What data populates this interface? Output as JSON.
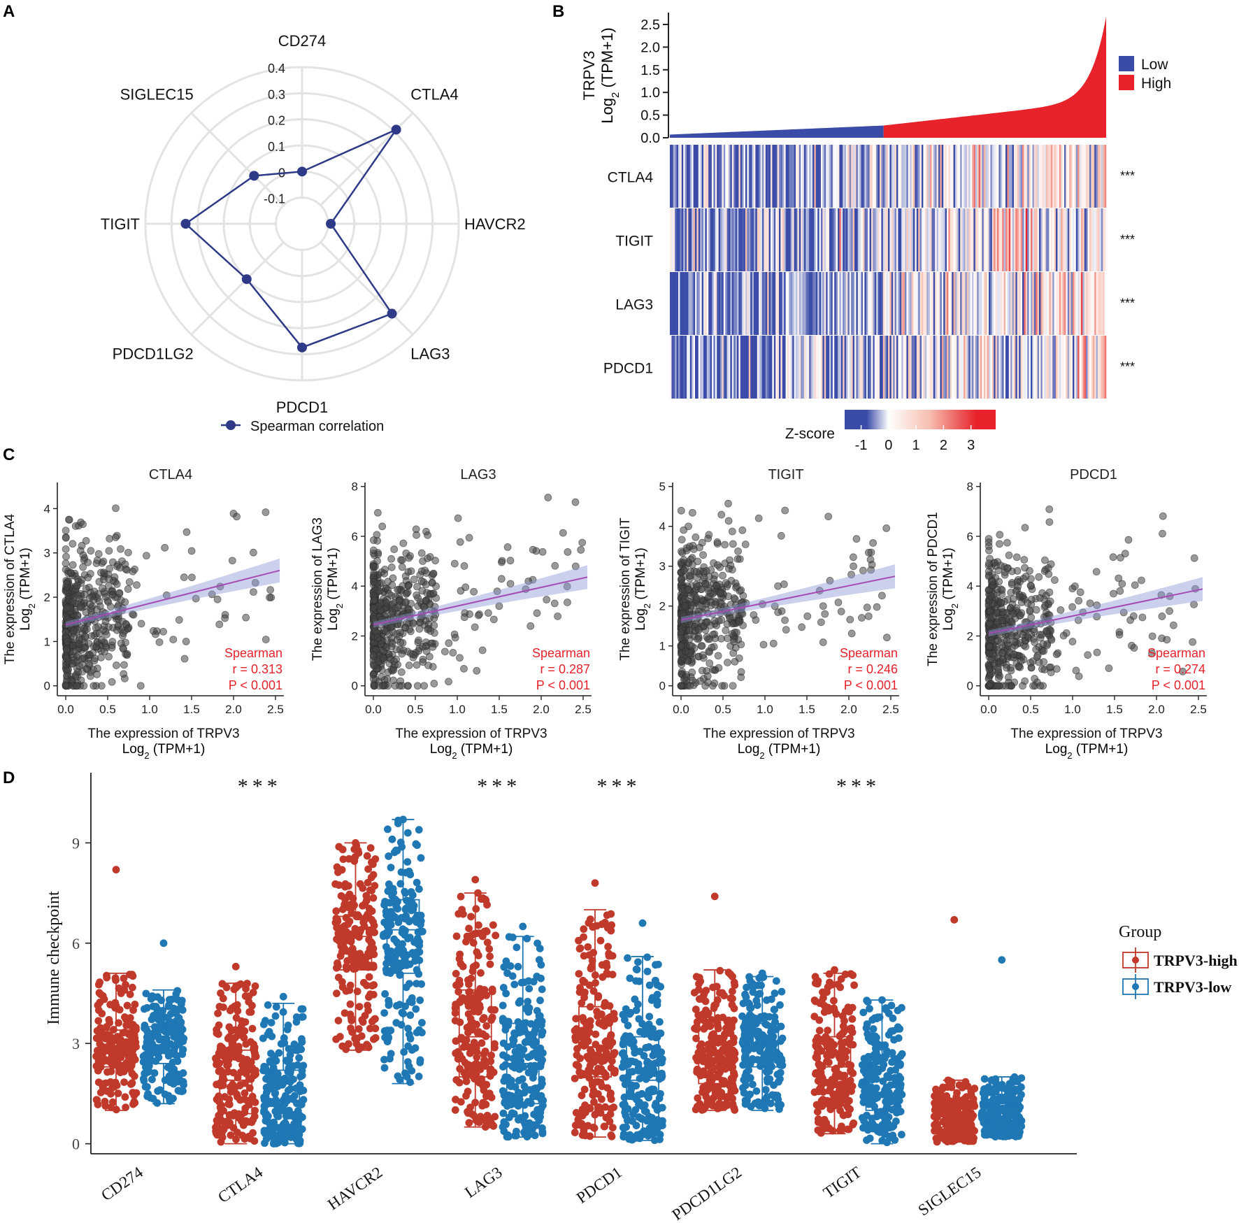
{
  "panel_labels": [
    "A",
    "B",
    "C",
    "D"
  ],
  "chart_data": [
    {
      "panel": "A",
      "type": "radar",
      "title": "",
      "axes": [
        "CD274",
        "CTLA4",
        "HAVCR2",
        "LAG3",
        "PDCD1",
        "PDCD1LG2",
        "TIGIT",
        "SIGLEC15"
      ],
      "values": [
        0.0,
        0.31,
        -0.09,
        0.287,
        0.274,
        0.1,
        0.246,
        0.06
      ],
      "rlim": [
        -0.2,
        0.4
      ],
      "ticks": [
        "0.4",
        "0.3",
        "0.2",
        "0.1",
        "0",
        "-0.1"
      ],
      "tick_values": [
        0.4,
        0.3,
        0.2,
        0.1,
        0,
        -0.1
      ],
      "legend": "Spearman correlation",
      "series_color": "#2e3a87"
    },
    {
      "panel": "B",
      "type": "heatmap",
      "bar_ylabel_line1": "TRPV3",
      "bar_ylabel_line2": "Log",
      "bar_ylabel_sub": "2",
      "bar_ylabel_tail": " (TPM+1)",
      "bar_yticks": [
        "2.5",
        "2.0",
        "1.5",
        "1.0",
        "0.5",
        "0.0"
      ],
      "bar_ytick_values": [
        2.5,
        2.0,
        1.5,
        1.0,
        0.5,
        0.0
      ],
      "bar_ylim": [
        0,
        2.7
      ],
      "low_fraction": 0.49,
      "legend": [
        {
          "label": "Low",
          "color": "#3a4ba8"
        },
        {
          "label": "High",
          "color": "#e8222b"
        }
      ],
      "rows": [
        "CTLA4",
        "TIGIT",
        "LAG3",
        "PDCD1"
      ],
      "row_significance": [
        "***",
        "***",
        "***",
        "***"
      ],
      "zscore_label": "Z-score",
      "zscore_ticks": [
        "-1",
        "0",
        "1",
        "2",
        "3"
      ],
      "zscore_tick_values": [
        -1,
        0,
        1,
        2,
        3
      ],
      "zscore_range": [
        -1.6,
        3.9
      ]
    },
    {
      "panel": "C",
      "type": "scatter",
      "subplots": [
        {
          "title": "CTLA4",
          "ylab1": "The expression of CTLA4",
          "ylim": [
            0,
            4.5
          ],
          "yticks": [
            "0",
            "1",
            "2",
            "3",
            "4"
          ],
          "ytick_values": [
            0,
            1,
            2,
            3,
            4
          ],
          "fit": [
            1.38,
            0.48
          ],
          "stat_title": "Spearman",
          "r": "r = 0.313",
          "p": "P < 0.001"
        },
        {
          "title": "LAG3",
          "ylab1": "The expression of LAG3",
          "ylim": [
            0,
            8
          ],
          "yticks": [
            "0",
            "2",
            "4",
            "6",
            "8"
          ],
          "ytick_values": [
            0,
            2,
            4,
            6,
            8
          ],
          "fit": [
            2.45,
            0.75
          ],
          "stat_title": "Spearman",
          "r": "r = 0.287",
          "p": "P < 0.001"
        },
        {
          "title": "TIGIT",
          "ylab1": "The expression of TIGIT",
          "ylim": [
            0,
            5
          ],
          "yticks": [
            "0",
            "1",
            "2",
            "3",
            "4",
            "5"
          ],
          "ytick_values": [
            0,
            1,
            2,
            3,
            4,
            5
          ],
          "fit": [
            1.65,
            0.43
          ],
          "stat_title": "Spearman",
          "r": "r = 0.246",
          "p": "P < 0.001"
        },
        {
          "title": "PDCD1",
          "ylab1": "The expression of PDCD1",
          "ylim": [
            0,
            8
          ],
          "yticks": [
            "0",
            "2",
            "4",
            "6",
            "8"
          ],
          "ytick_values": [
            0,
            2,
            4,
            6,
            8
          ],
          "fit": [
            2.1,
            0.7
          ],
          "stat_title": "Spearman",
          "r": "r = 0.274",
          "p": "P < 0.001"
        }
      ],
      "ylab2_text": "Log",
      "ylab2_sub": "2",
      "ylab2_tail": " (TPM+1)",
      "xlabel1": "The expression of TRPV3",
      "xlabel2_text": "Log",
      "xlabel2_sub": "2",
      "xlabel2_tail": " (TPM+1)",
      "xticks": [
        "0.0",
        "0.5",
        "1.0",
        "1.5",
        "2.0",
        "2.5"
      ],
      "xtick_values": [
        0.0,
        0.5,
        1.0,
        1.5,
        2.0,
        2.5
      ],
      "xlim": [
        -0.1,
        2.6
      ]
    },
    {
      "panel": "D",
      "type": "box",
      "ylabel": "Immune checkpoint",
      "yticks": [
        "0",
        "3",
        "6",
        "9"
      ],
      "ytick_values": [
        0,
        3,
        6,
        9
      ],
      "ylim": [
        -0.3,
        11.1
      ],
      "categories": [
        "CD274",
        "CTLA4",
        "HAVCR2",
        "LAG3",
        "PDCD1",
        "PDCD1LG2",
        "TIGIT",
        "SIGLEC15"
      ],
      "significance": [
        "",
        "***",
        "",
        "***",
        "***",
        "",
        "***",
        ""
      ],
      "legend_title": "Group",
      "series": [
        {
          "name": "TRPV3-high",
          "color": "#c0392b",
          "q1": [
            2.3,
            0.9,
            5.2,
            2.0,
            2.0,
            1.8,
            1.5,
            0.5
          ],
          "median": [
            2.9,
            1.9,
            6.2,
            3.2,
            2.9,
            2.8,
            2.3,
            0.9
          ],
          "q3": [
            3.4,
            2.8,
            6.8,
            4.6,
            4.1,
            3.7,
            3.2,
            1.2
          ],
          "whisker_low": [
            1.0,
            0.0,
            2.8,
            0.5,
            0.2,
            1.0,
            0.3,
            0.05
          ],
          "whisker_high": [
            5.1,
            4.8,
            9.0,
            7.5,
            7.0,
            5.2,
            5.1,
            1.9
          ],
          "max_point": [
            8.2,
            5.3,
            9.0,
            7.9,
            7.8,
            7.4,
            5.2,
            6.7
          ]
        },
        {
          "name": "TRPV3-low",
          "color": "#1f77b4",
          "q1": [
            2.4,
            0.4,
            5.1,
            1.2,
            0.8,
            2.3,
            1.0,
            0.4
          ],
          "median": [
            2.9,
            1.3,
            6.4,
            2.4,
            1.9,
            3.0,
            1.9,
            0.8
          ],
          "q3": [
            3.5,
            2.2,
            7.3,
            3.6,
            3.2,
            3.6,
            2.6,
            1.2
          ],
          "whisker_low": [
            1.2,
            0.0,
            1.8,
            0.2,
            0.1,
            1.0,
            0.0,
            0.2
          ],
          "whisker_high": [
            4.6,
            4.2,
            9.7,
            6.2,
            5.6,
            5.0,
            4.3,
            2.0
          ],
          "max_point": [
            6.0,
            4.4,
            9.7,
            6.5,
            6.6,
            5.1,
            4.3,
            5.5
          ]
        }
      ]
    }
  ]
}
